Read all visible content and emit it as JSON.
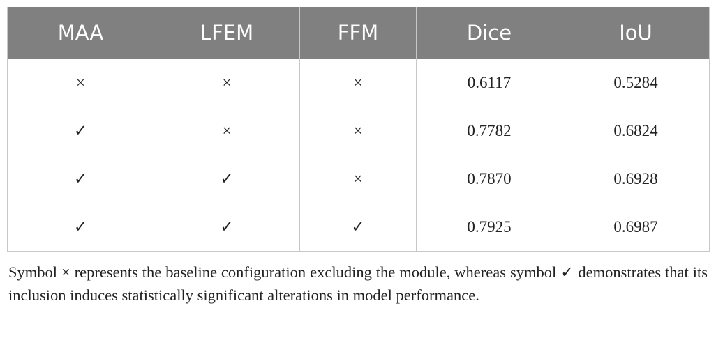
{
  "table": {
    "header": [
      "MAA",
      "LFEM",
      "FFM",
      "Dice",
      "IoU"
    ],
    "rows": [
      [
        "×",
        "×",
        "×",
        "0.6117",
        "0.5284"
      ],
      [
        "✓",
        "×",
        "×",
        "0.7782",
        "0.6824"
      ],
      [
        "✓",
        "✓",
        "×",
        "0.7870",
        "0.6928"
      ],
      [
        "✓",
        "✓",
        "✓",
        "0.7925",
        "0.6987"
      ]
    ]
  },
  "caption": "Symbol × represents the baseline configuration excluding the module, whereas symbol ✓ demonstrates that its inclusion induces statistically significant alterations in model performance."
}
